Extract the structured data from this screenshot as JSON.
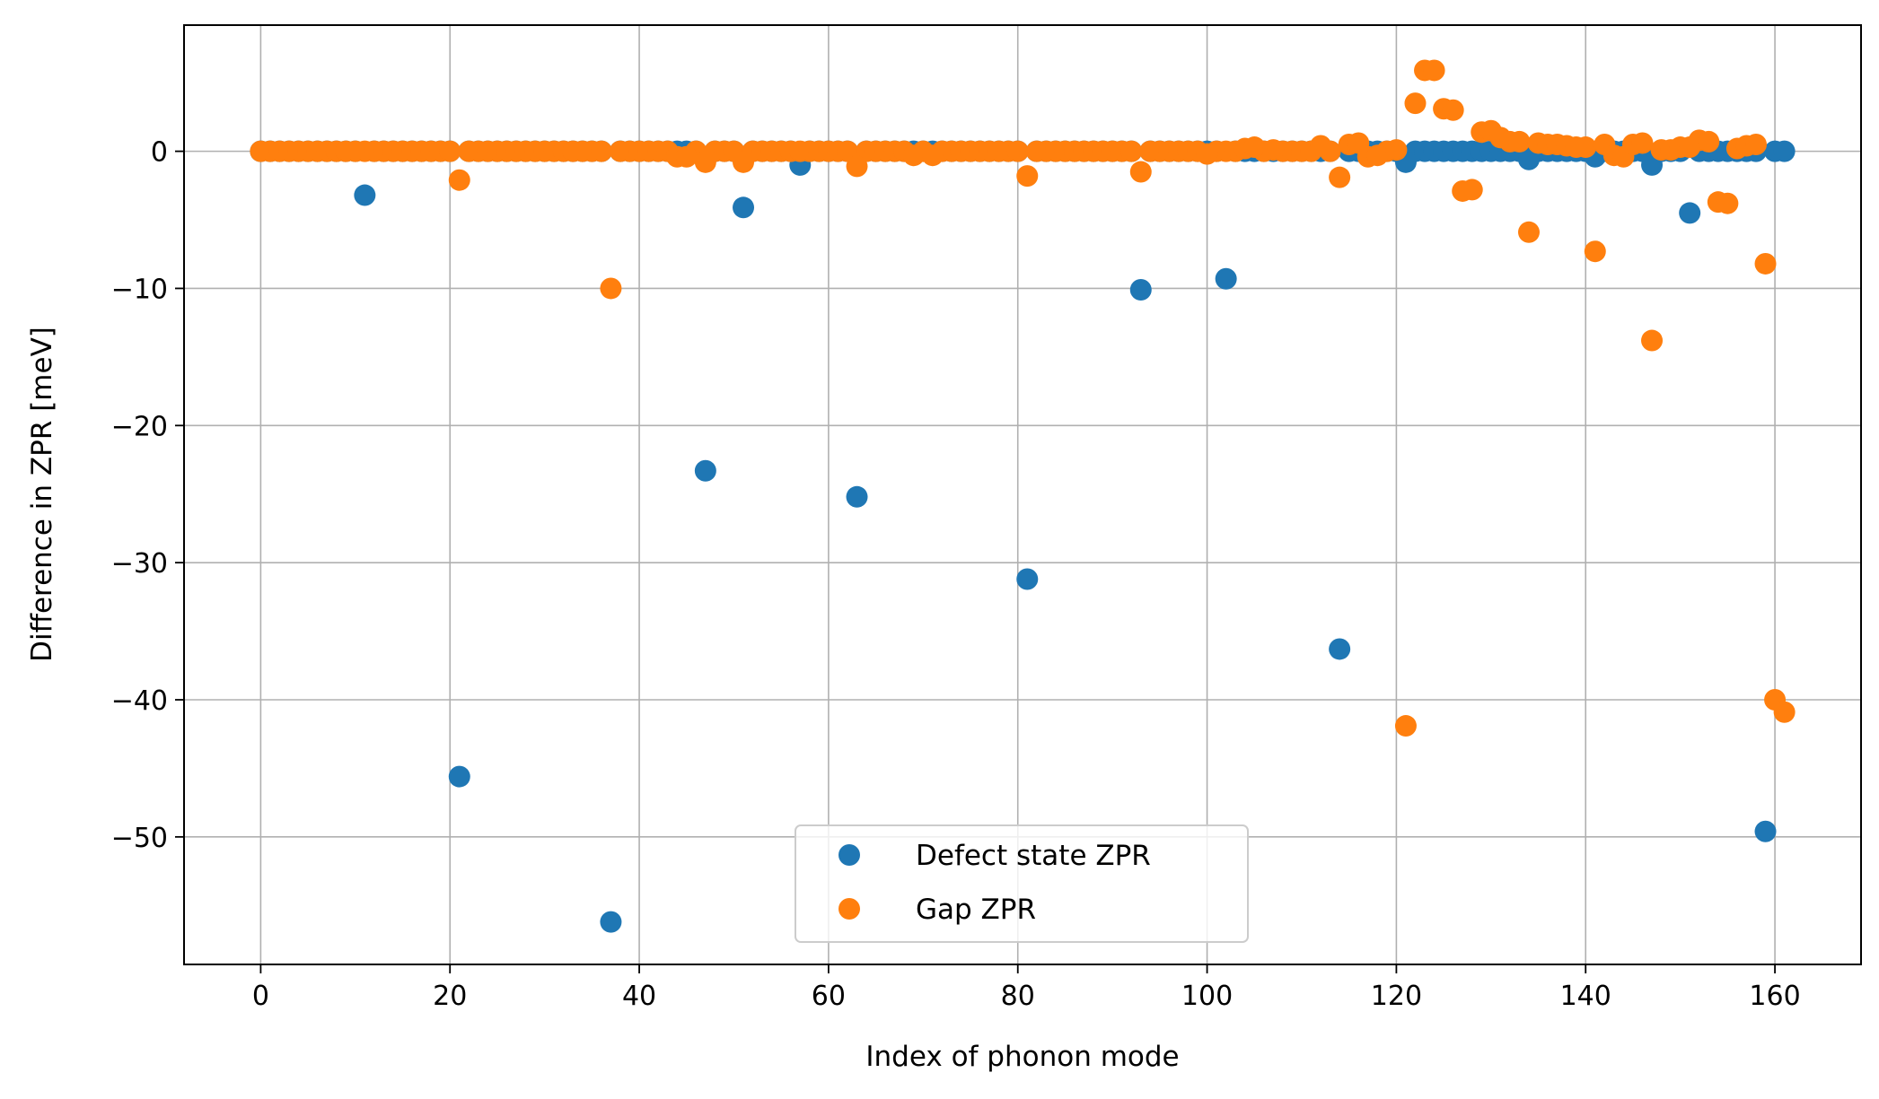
{
  "chart_data": {
    "type": "scatter",
    "xlabel": "Index of phonon mode",
    "ylabel": "Difference in ZPR [meV]",
    "xlim": [
      -8.1,
      169.1
    ],
    "ylim": [
      -59.3,
      9.2
    ],
    "xticks": [
      0,
      20,
      40,
      60,
      80,
      100,
      120,
      140,
      160
    ],
    "yticks": [
      0,
      -10,
      -20,
      -30,
      -40,
      -50
    ],
    "ytick_labels": [
      "0",
      "−10",
      "−20",
      "−30",
      "−40",
      "−50"
    ],
    "grid": true,
    "legend_position": "lower center",
    "series": [
      {
        "name": "Defect state ZPR",
        "color": "#1f77b4",
        "baseline": {
          "x_from": 0,
          "x_to": 161,
          "y": 0
        },
        "points": [
          [
            11,
            -3.2
          ],
          [
            21,
            -45.6
          ],
          [
            37,
            -56.2
          ],
          [
            47,
            -23.3
          ],
          [
            51,
            -4.1
          ],
          [
            57,
            -1.0
          ],
          [
            63,
            -25.2
          ],
          [
            81,
            -31.2
          ],
          [
            93,
            -10.1
          ],
          [
            102,
            -9.3
          ],
          [
            114,
            -36.3
          ],
          [
            121,
            -0.8
          ],
          [
            134,
            -0.6
          ],
          [
            141,
            -0.4
          ],
          [
            147,
            -1.0
          ],
          [
            151,
            -4.5
          ],
          [
            159,
            -49.6
          ]
        ]
      },
      {
        "name": "Gap ZPR",
        "color": "#ff7f0e",
        "baseline": {
          "x_from": 0,
          "x_to": 161,
          "y": 0
        },
        "points": [
          [
            21,
            -2.1
          ],
          [
            37,
            -10.0
          ],
          [
            44,
            -0.4
          ],
          [
            45,
            -0.4
          ],
          [
            47,
            -0.8
          ],
          [
            51,
            -0.8
          ],
          [
            63,
            -1.1
          ],
          [
            69,
            -0.3
          ],
          [
            71,
            -0.3
          ],
          [
            81,
            -1.8
          ],
          [
            93,
            -1.5
          ],
          [
            100,
            -0.2
          ],
          [
            104,
            0.2
          ],
          [
            105,
            0.3
          ],
          [
            107,
            0.1
          ],
          [
            112,
            0.4
          ],
          [
            114,
            -1.9
          ],
          [
            115,
            0.5
          ],
          [
            116,
            0.6
          ],
          [
            117,
            -0.4
          ],
          [
            118,
            -0.3
          ],
          [
            120,
            0.1
          ],
          [
            121,
            -41.9
          ],
          [
            122,
            3.5
          ],
          [
            123,
            5.9
          ],
          [
            124,
            5.9
          ],
          [
            125,
            3.1
          ],
          [
            126,
            3.0
          ],
          [
            127,
            -2.9
          ],
          [
            128,
            -2.8
          ],
          [
            129,
            1.4
          ],
          [
            130,
            1.5
          ],
          [
            131,
            1.0
          ],
          [
            132,
            0.7
          ],
          [
            133,
            0.7
          ],
          [
            134,
            -5.9
          ],
          [
            135,
            0.6
          ],
          [
            136,
            0.5
          ],
          [
            137,
            0.5
          ],
          [
            138,
            0.4
          ],
          [
            139,
            0.3
          ],
          [
            140,
            0.3
          ],
          [
            141,
            -7.3
          ],
          [
            142,
            0.5
          ],
          [
            143,
            -0.3
          ],
          [
            144,
            -0.4
          ],
          [
            145,
            0.5
          ],
          [
            146,
            0.6
          ],
          [
            147,
            -13.8
          ],
          [
            148,
            0.1
          ],
          [
            149,
            0.1
          ],
          [
            150,
            0.3
          ],
          [
            151,
            0.3
          ],
          [
            152,
            0.8
          ],
          [
            153,
            0.7
          ],
          [
            154,
            -3.7
          ],
          [
            155,
            -3.8
          ],
          [
            156,
            0.2
          ],
          [
            157,
            0.4
          ],
          [
            158,
            0.5
          ],
          [
            159,
            -8.2
          ],
          [
            160,
            -40.0
          ],
          [
            161,
            -40.9
          ]
        ]
      }
    ]
  }
}
